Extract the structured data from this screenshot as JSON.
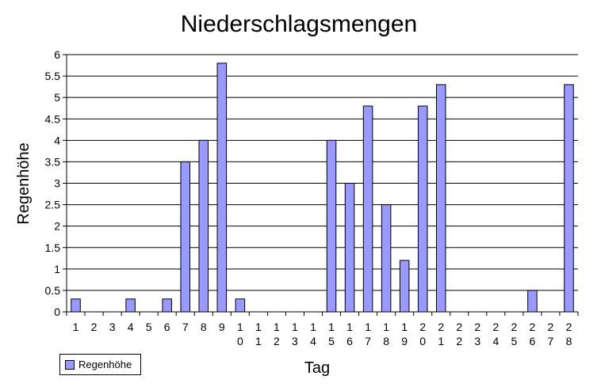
{
  "colors": {
    "bar_fill": "#9999ff",
    "bar_stroke": "#000000",
    "grid": "#000000",
    "text": "#000000"
  },
  "chart_data": {
    "type": "bar",
    "title": "Niederschlagsmengen",
    "xlabel": "Tag",
    "ylabel": "Regenhöhe",
    "ylim": [
      0,
      6
    ],
    "yticks": [
      0,
      0.5,
      1,
      1.5,
      2,
      2.5,
      3,
      3.5,
      4,
      4.5,
      5,
      5.5,
      6
    ],
    "grid": true,
    "legend_position": "bottom-left",
    "categories": [
      "1",
      "2",
      "3",
      "4",
      "5",
      "6",
      "7",
      "8",
      "9",
      "10",
      "11",
      "12",
      "13",
      "14",
      "15",
      "16",
      "17",
      "18",
      "19",
      "20",
      "21",
      "22",
      "23",
      "24",
      "25",
      "26",
      "27",
      "28"
    ],
    "series": [
      {
        "name": "Regenhöhe",
        "values": [
          0.3,
          0,
          0,
          0.3,
          0,
          0.3,
          3.5,
          4,
          5.8,
          0.3,
          0,
          0,
          0,
          0,
          4,
          3,
          4.8,
          2.5,
          1.2,
          4.8,
          5.3,
          0,
          0,
          0,
          0,
          0.5,
          0,
          5.3
        ]
      }
    ]
  }
}
